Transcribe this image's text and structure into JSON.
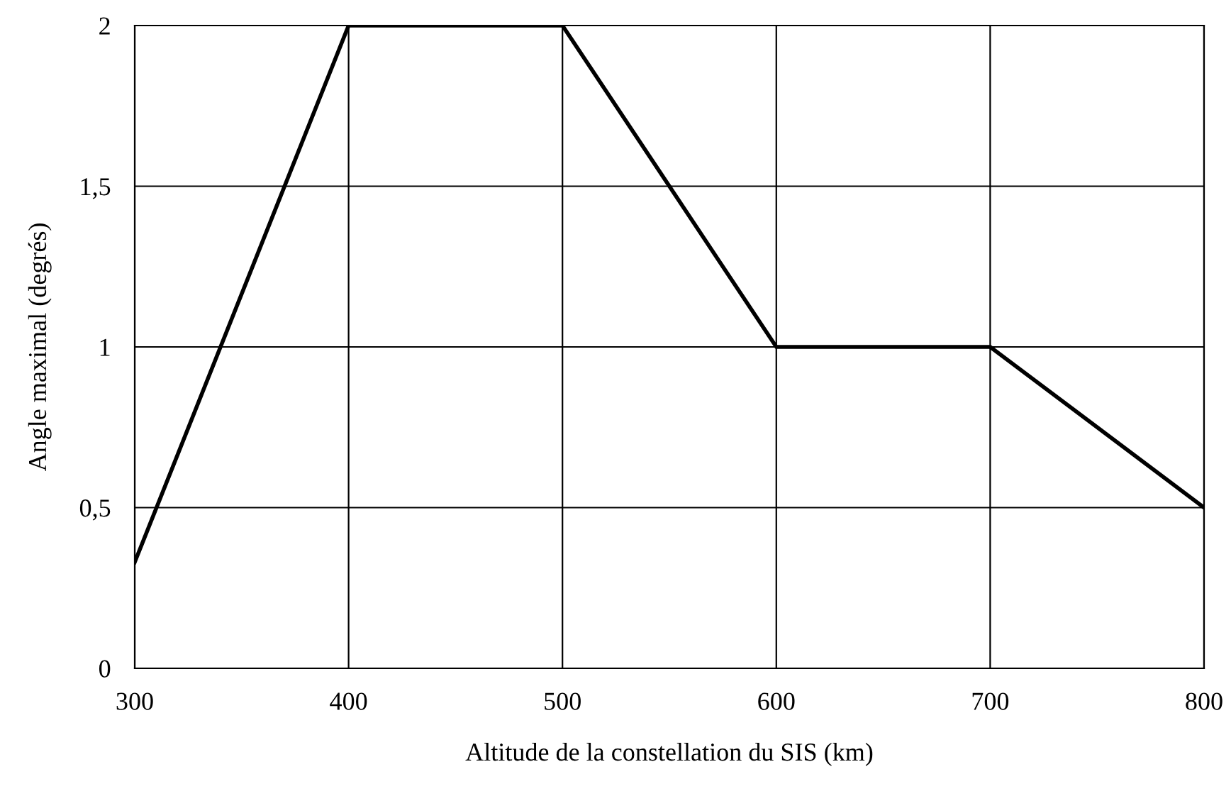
{
  "chart_data": {
    "type": "line",
    "xlabel": "Altitude de la constellation du SIS (km)",
    "ylabel": "Angle maximal (degrés)",
    "x": [
      300,
      400,
      500,
      600,
      700,
      800
    ],
    "series": [
      {
        "color": "#000000",
        "values": [
          0.33,
          2,
          2,
          1,
          1,
          0.5
        ]
      }
    ],
    "xlim": [
      300,
      800
    ],
    "xticks": [
      300,
      400,
      500,
      600,
      700,
      800
    ],
    "ylim": [
      0,
      2
    ],
    "yticks": [
      0,
      {
        "value": 0.5,
        "label": "0,5"
      },
      1,
      {
        "value": 1.5,
        "label": "1,5"
      },
      2
    ],
    "grid": true,
    "marker": "none",
    "line_style": "solid"
  }
}
